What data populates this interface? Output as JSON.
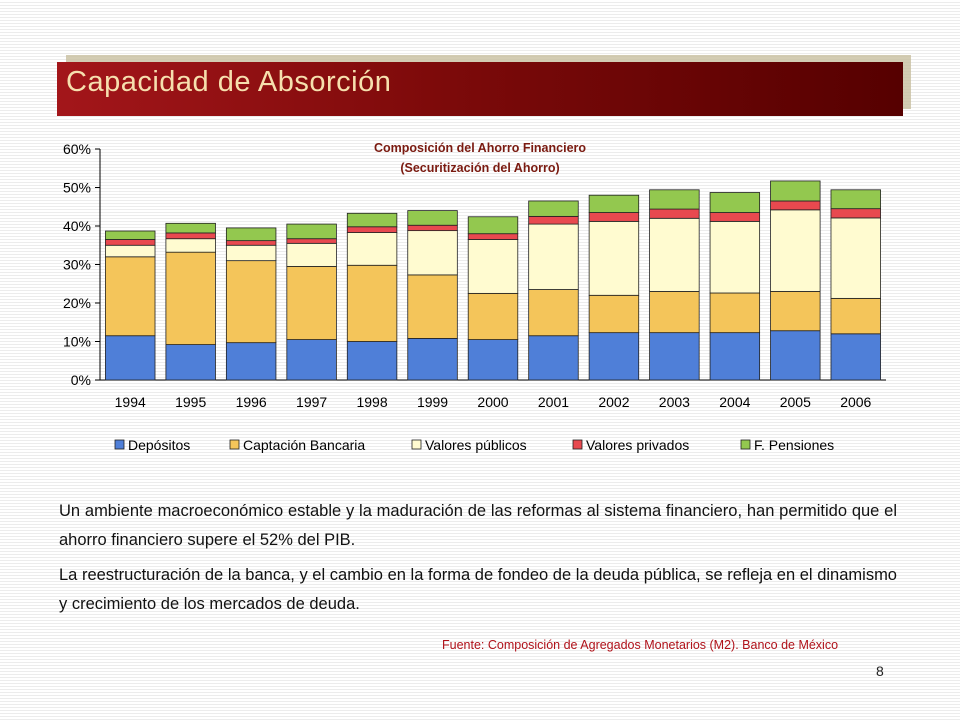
{
  "slide": {
    "title": "Capacidad de Absorción",
    "paragraphs": [
      "Un ambiente macroeconómico estable y la maduración de las reformas al sistema financiero, han permitido que el ahorro financiero supere el 52% del PIB.",
      "La reestructuración de la banca, y el cambio en la forma de fondeo de la deuda pública, se refleja en el dinamismo y crecimiento de los mercados de deuda."
    ],
    "source": "Fuente: Composición de Agregados Monetarios (M2). Banco de México",
    "page_number": "8"
  },
  "chart_data": {
    "type": "bar",
    "stacked": true,
    "title": "Composición del Ahorro Financiero",
    "subtitle": "(Securitización del Ahorro)",
    "categories": [
      "1994",
      "1995",
      "1996",
      "1997",
      "1998",
      "1999",
      "2000",
      "2001",
      "2002",
      "2003",
      "2004",
      "2005",
      "2006"
    ],
    "series": [
      {
        "name": "Depósitos",
        "color": "#4f7fd8",
        "values": [
          11.5,
          9.2,
          9.7,
          10.5,
          10.0,
          10.8,
          10.5,
          11.5,
          12.3,
          12.3,
          12.3,
          12.8,
          12.0
        ]
      },
      {
        "name": "Captación Bancaria",
        "color": "#f4c55a",
        "values": [
          20.5,
          24.0,
          21.3,
          19.0,
          19.8,
          16.5,
          12.0,
          12.0,
          9.7,
          10.7,
          10.3,
          10.2,
          9.2
        ]
      },
      {
        "name": "Valores públicos",
        "color": "#fffbd0",
        "values": [
          3.0,
          3.5,
          4.0,
          6.0,
          8.5,
          11.5,
          14.0,
          17.0,
          19.2,
          19.0,
          18.6,
          21.2,
          20.9
        ]
      },
      {
        "name": "Valores privados",
        "color": "#e8494f",
        "values": [
          1.5,
          1.5,
          1.2,
          1.2,
          1.5,
          1.4,
          1.5,
          2.0,
          2.3,
          2.4,
          2.3,
          2.3,
          2.4
        ]
      },
      {
        "name": "F. Pensiones",
        "color": "#93c84f",
        "values": [
          2.2,
          2.5,
          3.3,
          3.8,
          3.5,
          3.8,
          4.4,
          4.0,
          4.5,
          5.0,
          5.2,
          5.2,
          4.9
        ]
      }
    ],
    "y_ticks": [
      "0%",
      "10%",
      "20%",
      "30%",
      "40%",
      "50%",
      "60%"
    ],
    "ylim": [
      0,
      60
    ],
    "legend_position": "bottom",
    "grid": false
  }
}
